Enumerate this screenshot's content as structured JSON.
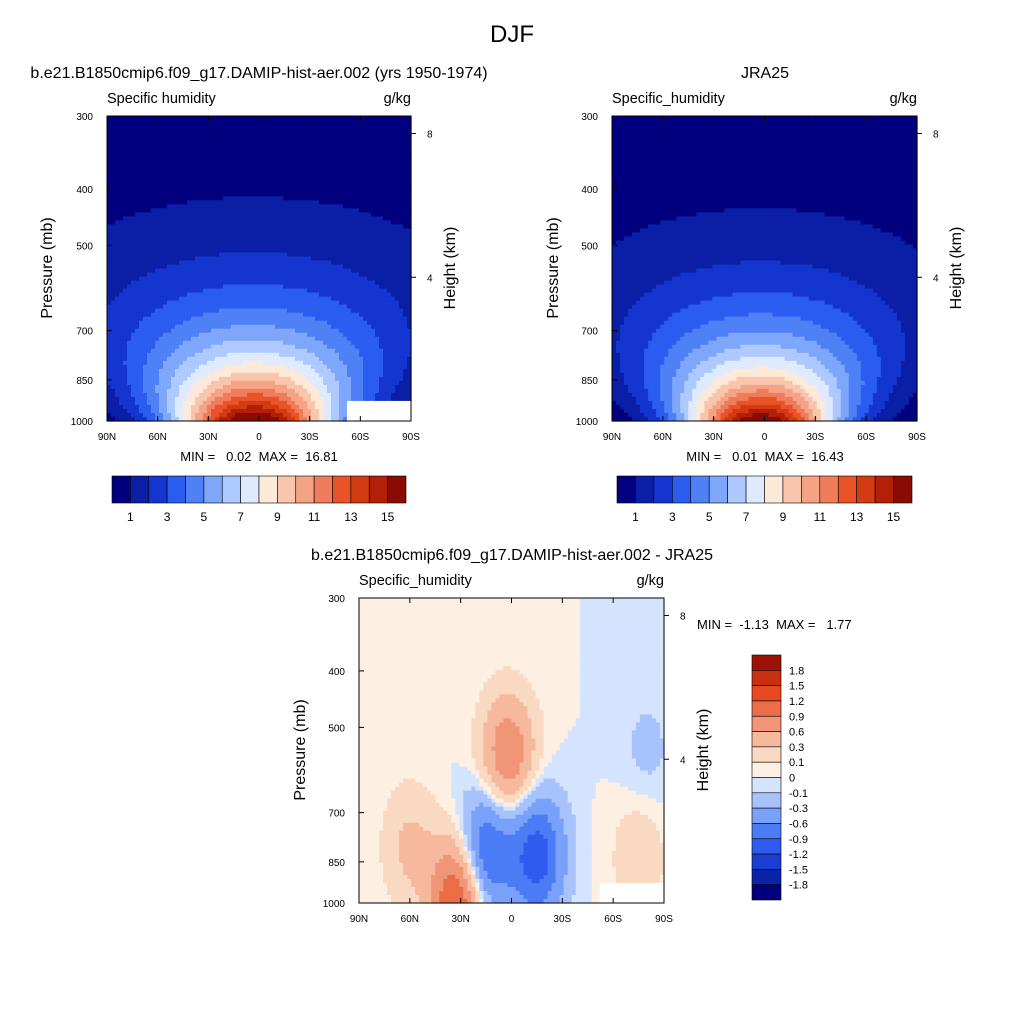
{
  "figure_title": "DJF",
  "colors": {
    "abs_scale": [
      "#02007f",
      "#0a1fa6",
      "#1535cf",
      "#2a5cf0",
      "#4f80f5",
      "#7ea6fa",
      "#adc9fd",
      "#dfeafe",
      "#fde9d8",
      "#f9c5ac",
      "#f5a385",
      "#ef7c5a",
      "#ea5327",
      "#d33b13",
      "#b41f08",
      "#8a0a04"
    ],
    "diff_scale": [
      "#02007f",
      "#0a23a9",
      "#1a3ed4",
      "#2f5bef",
      "#4c7cf5",
      "#7aa1f9",
      "#a8c3fc",
      "#d4e4fe",
      "#fdf0e3",
      "#fad9c3",
      "#f6b99e",
      "#f19577",
      "#ec6d47",
      "#e64a20",
      "#c93012",
      "#9c1306"
    ],
    "missing": "#ffffff"
  },
  "chart_data": [
    {
      "type": "heatmap",
      "title": "b.e21.B1850cmip6.f09_g17.DAMIP-hist-aer.002 (yrs 1950-1974)",
      "left_label": "Specific humidity",
      "right_label": "g/kg",
      "xlabel": "",
      "ylabel": "Pressure (mb)",
      "ylabel_right": "Height (km)",
      "x_ticks": [
        "90N",
        "60N",
        "30N",
        "0",
        "30S",
        "60S",
        "90S"
      ],
      "x_values": [
        90,
        60,
        30,
        0,
        -30,
        -60,
        -90
      ],
      "y_ticks": [
        "300",
        "400",
        "500",
        "700",
        "850",
        "1000"
      ],
      "y_values": [
        300,
        400,
        500,
        700,
        850,
        1000
      ],
      "ylim": [
        1000,
        300
      ],
      "y_scale": "log",
      "right_ticks": [
        "8",
        "4"
      ],
      "right_values_km": [
        8,
        4
      ],
      "min_max_text": "MIN =   0.02  MAX =  16.81",
      "min": 0.02,
      "max": 16.81,
      "field": {
        "peak": 16.81,
        "peak_lat": 3,
        "width_lat": 34,
        "scale_height_km": 2.3,
        "missing_region": "southern hemisphere high latitudes near surface"
      },
      "colorbar": {
        "orientation": "horizontal",
        "labels": [
          "1",
          "3",
          "5",
          "7",
          "9",
          "11",
          "13",
          "15"
        ],
        "levels": [
          1,
          2,
          3,
          4,
          5,
          6,
          7,
          8,
          9,
          10,
          11,
          12,
          13,
          14,
          15
        ]
      }
    },
    {
      "type": "heatmap",
      "title": "JRA25",
      "left_label": "Specific_humidity",
      "right_label": "g/kg",
      "xlabel": "",
      "ylabel": "Pressure (mb)",
      "ylabel_right": "Height (km)",
      "x_ticks": [
        "90N",
        "60N",
        "30N",
        "0",
        "30S",
        "60S",
        "90S"
      ],
      "x_values": [
        90,
        60,
        30,
        0,
        -30,
        -60,
        -90
      ],
      "y_ticks": [
        "300",
        "400",
        "500",
        "700",
        "850",
        "1000"
      ],
      "y_values": [
        300,
        400,
        500,
        700,
        850,
        1000
      ],
      "ylim": [
        1000,
        300
      ],
      "y_scale": "log",
      "right_ticks": [
        "8",
        "4"
      ],
      "right_values_km": [
        8,
        4
      ],
      "min_max_text": "MIN =   0.01  MAX =  16.43",
      "min": 0.01,
      "max": 16.43,
      "field": {
        "peak": 16.43,
        "peak_lat": 2,
        "width_lat": 32,
        "scale_height_km": 2.2
      },
      "colorbar": {
        "orientation": "horizontal",
        "labels": [
          "1",
          "3",
          "5",
          "7",
          "9",
          "11",
          "13",
          "15"
        ],
        "levels": [
          1,
          2,
          3,
          4,
          5,
          6,
          7,
          8,
          9,
          10,
          11,
          12,
          13,
          14,
          15
        ]
      }
    },
    {
      "type": "heatmap",
      "title": "b.e21.B1850cmip6.f09_g17.DAMIP-hist-aer.002 - JRA25",
      "left_label": "Specific_humidity",
      "right_label": "g/kg",
      "xlabel": "",
      "ylabel": "Pressure (mb)",
      "ylabel_right": "Height (km)",
      "x_ticks": [
        "90N",
        "60N",
        "30N",
        "0",
        "30S",
        "60S",
        "90S"
      ],
      "x_values": [
        90,
        60,
        30,
        0,
        -30,
        -60,
        -90
      ],
      "y_ticks": [
        "300",
        "400",
        "500",
        "700",
        "850",
        "1000"
      ],
      "y_values": [
        300,
        400,
        500,
        700,
        850,
        1000
      ],
      "ylim": [
        1000,
        300
      ],
      "y_scale": "log",
      "right_ticks": [
        "8",
        "4"
      ],
      "right_values_km": [
        8,
        4
      ],
      "min_max_text": "MIN =  -1.13  MAX =   1.77",
      "min": -1.13,
      "max": 1.77,
      "field": {
        "features": [
          {
            "lat": 32,
            "p": 985,
            "amp": 1.3,
            "note": "positive near surface, northern subtropics"
          },
          {
            "lat": 2,
            "p": 560,
            "amp": 0.9,
            "note": "positive mid-troposphere over equator"
          },
          {
            "lat": 15,
            "p": 820,
            "amp": -1.0,
            "note": "negative lower troposphere"
          },
          {
            "lat": -15,
            "p": 830,
            "amp": -1.1,
            "note": "negative lower troposphere"
          },
          {
            "lat": 60,
            "p": 800,
            "amp": 0.35,
            "note": "weak positive"
          },
          {
            "lat": -75,
            "p": 830,
            "amp": 0.25,
            "note": "weak positive"
          },
          {
            "lat": -80,
            "p": 550,
            "amp": -0.15,
            "note": "weak negative"
          }
        ],
        "missing_region": "southern hemisphere high latitudes near surface"
      },
      "colorbar": {
        "orientation": "vertical",
        "labels": [
          "1.8",
          "1.5",
          "1.2",
          "0.9",
          "0.6",
          "0.3",
          "0.1",
          "0",
          "-0.1",
          "-0.3",
          "-0.6",
          "-0.9",
          "-1.2",
          "-1.5",
          "-1.8"
        ],
        "levels": [
          1.8,
          1.5,
          1.2,
          0.9,
          0.6,
          0.3,
          0.1,
          0,
          -0.1,
          -0.3,
          -0.6,
          -0.9,
          -1.2,
          -1.5,
          -1.8
        ]
      }
    }
  ]
}
